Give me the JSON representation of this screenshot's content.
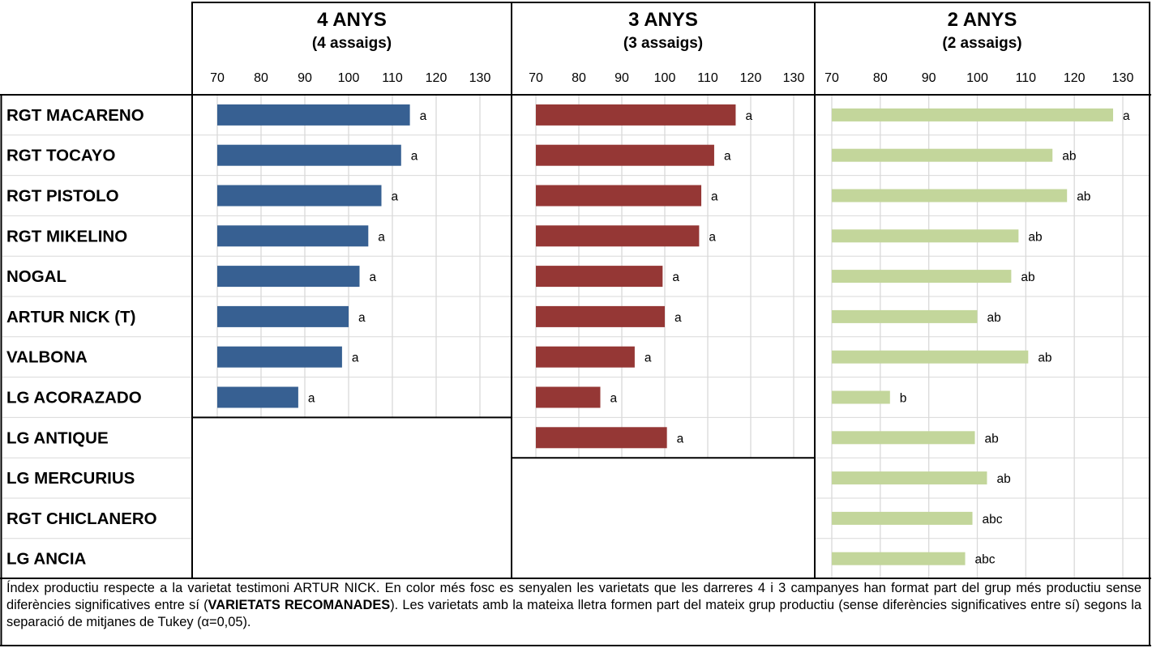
{
  "chart_data": {
    "type": "bar",
    "orientation": "horizontal",
    "categories": [
      "RGT MACARENO",
      "RGT TOCAYO",
      "RGT PISTOLO",
      "RGT MIKELINO",
      "NOGAL",
      "ARTUR NICK (T)",
      "VALBONA",
      "LG ACORAZADO",
      "LG ANTIQUE",
      "LG MERCURIUS",
      "RGT CHICLANERO",
      "LG ANCIA"
    ],
    "xlim": [
      70,
      130
    ],
    "ticks": [
      "70",
      "80",
      "90",
      "100",
      "110",
      "120",
      "130"
    ],
    "grid": true,
    "panels": [
      {
        "title": "4 ANYS",
        "subtitle": "(4 assaigs)",
        "color": "#376092",
        "values": [
          114,
          112,
          107.5,
          104.5,
          102.5,
          100,
          98.5,
          88.5
        ],
        "letters": [
          "a",
          "a",
          "a",
          "a",
          "a",
          "a",
          "a",
          "a"
        ]
      },
      {
        "title": "3 ANYS",
        "subtitle": "(3 assaigs)",
        "color": "#953735",
        "values": [
          116.5,
          111.5,
          108.5,
          108,
          99.5,
          100,
          93,
          85,
          100.5
        ],
        "letters": [
          "a",
          "a",
          "a",
          "a",
          "a",
          "a",
          "a",
          "a",
          "a"
        ]
      },
      {
        "title": "2 ANYS",
        "subtitle": "(2 assaigs)",
        "color": "#c3d69b",
        "values": [
          128,
          115.5,
          118.5,
          108.5,
          107,
          100,
          110.5,
          82,
          99.5,
          102,
          99,
          97.5
        ],
        "letters": [
          "a",
          "ab",
          "ab",
          "ab",
          "ab",
          "ab",
          "ab",
          "b",
          "ab",
          "ab",
          "abc",
          "abc"
        ]
      }
    ]
  },
  "footnote": {
    "part1": "Índex productiu respecte a la varietat testimoni ARTUR NICK. En color més fosc es senyalen les varietats que les darreres 4 i 3 campanyes han format part del grup més productiu sense diferències significatives entre sí (",
    "bold": "VARIETATS RECOMANADES",
    "part2": "). Les varietats amb la mateixa lletra formen part del mateix grup productiu (sense diferències significatives entre sí) segons la separació de mitjanes de Tukey (α=0,05)."
  }
}
